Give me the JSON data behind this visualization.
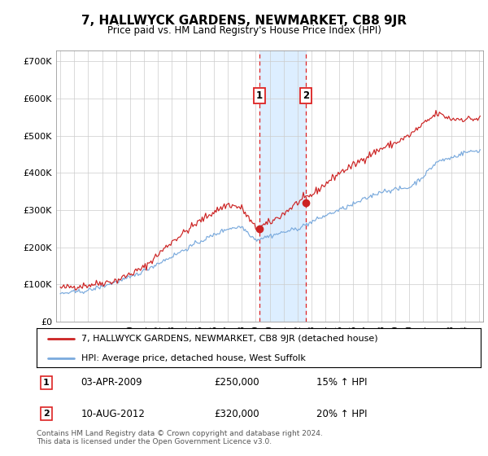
{
  "title": "7, HALLWYCK GARDENS, NEWMARKET, CB8 9JR",
  "subtitle": "Price paid vs. HM Land Registry's House Price Index (HPI)",
  "ylabel_ticks": [
    "£0",
    "£100K",
    "£200K",
    "£300K",
    "£400K",
    "£500K",
    "£600K",
    "£700K"
  ],
  "ytick_values": [
    0,
    100000,
    200000,
    300000,
    400000,
    500000,
    600000,
    700000
  ],
  "ylim": [
    0,
    730000
  ],
  "xlim_start": 1994.7,
  "xlim_end": 2025.3,
  "legend_line1": "7, HALLWYCK GARDENS, NEWMARKET, CB8 9JR (detached house)",
  "legend_line2": "HPI: Average price, detached house, West Suffolk",
  "transaction1_date": "03-APR-2009",
  "transaction1_price": "£250,000",
  "transaction1_hpi": "15% ↑ HPI",
  "transaction1_x": 2009.25,
  "transaction1_y": 250000,
  "transaction2_date": "10-AUG-2012",
  "transaction2_price": "£320,000",
  "transaction2_hpi": "20% ↑ HPI",
  "transaction2_x": 2012.6,
  "transaction2_y": 320000,
  "shade_x1": 2009.25,
  "shade_x2": 2012.6,
  "footnote": "Contains HM Land Registry data © Crown copyright and database right 2024.\nThis data is licensed under the Open Government Licence v3.0.",
  "line1_color": "#cc2222",
  "line2_color": "#7aaadd",
  "shade_color": "#ddeeff",
  "grid_color": "#cccccc",
  "label_box_color": "#dd2222",
  "hpi_anchors_x": [
    1995,
    1997,
    2000,
    2003,
    2005,
    2007,
    2008,
    2009,
    2010,
    2011,
    2012,
    2014,
    2016,
    2018,
    2020,
    2021,
    2022,
    2023,
    2024,
    2025
  ],
  "hpi_anchors_y": [
    75000,
    83000,
    118000,
    175000,
    215000,
    250000,
    255000,
    220000,
    230000,
    240000,
    250000,
    285000,
    315000,
    350000,
    360000,
    390000,
    430000,
    440000,
    455000,
    460000
  ],
  "prop_anchors_x": [
    1995,
    1997,
    1999,
    2001,
    2003,
    2005,
    2006,
    2007,
    2008,
    2009,
    2010,
    2011,
    2012,
    2013,
    2014,
    2015,
    2016,
    2017,
    2018,
    2019,
    2020,
    2021,
    2022,
    2023,
    2024,
    2025
  ],
  "prop_anchors_y": [
    90000,
    98000,
    110000,
    145000,
    215000,
    270000,
    295000,
    315000,
    305000,
    250000,
    265000,
    290000,
    320000,
    340000,
    370000,
    400000,
    420000,
    445000,
    465000,
    480000,
    500000,
    530000,
    560000,
    545000,
    545000,
    545000
  ]
}
